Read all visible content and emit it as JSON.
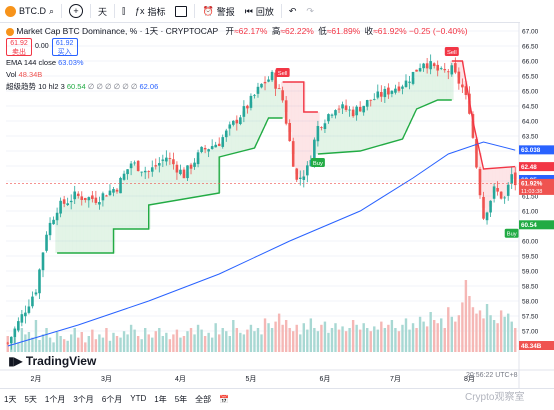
{
  "toolbar": {
    "symbol": "BTC.D",
    "add": "+",
    "interval": "天",
    "indicators": "指标",
    "alert": "警报",
    "replay": "回放",
    "undo": "↶",
    "redo": "↷"
  },
  "legend": {
    "title": "Market Cap BTC Dominance, % · 1天 · CRYPTOCAP",
    "open_label": "开",
    "open": "≈62.17%",
    "high_label": "高",
    "high": "≈62.22%",
    "low_label": "低",
    "low": "≈61.89%",
    "close_label": "收",
    "close": "≈61.92%",
    "change": "−0.25 (−0.40%)",
    "sell_value": "61.92",
    "sell_label": "卖出",
    "mid_value": "0.00",
    "buy_value": "61.92",
    "buy_label": "买入",
    "ema_label": "EMA 144 close",
    "ema_value": "63.03%",
    "vol_label": "Vol",
    "vol_value": "48.34B",
    "trend_label": "超级趋势 10 hl2 3",
    "trend_green": "60.54",
    "trend_empty": "∅ ∅ ∅ ∅ ∅ ∅",
    "trend_blue": "62.06"
  },
  "signals": {
    "sell": "Sell",
    "buy": "Buy"
  },
  "bottombar": {
    "ranges": [
      "1天",
      "5天",
      "1个月",
      "3个月",
      "6个月",
      "YTD",
      "1年",
      "5年",
      "全部"
    ],
    "timestamp": "20:56:22 UTC+8"
  },
  "logo": "TradingView",
  "watermark": "Crypto观察室",
  "colors": {
    "up": "#26a69a",
    "down": "#ef5350",
    "ema": "#2962ff",
    "trend_up": "#22ab44",
    "trend_down": "#f23645"
  },
  "chart_data": {
    "type": "candlestick",
    "title": "Market Cap BTC Dominance, % · 1天 · CRYPTOCAP",
    "y_axis_right": [
      67.0,
      66.5,
      66.0,
      65.5,
      65.0,
      64.5,
      64.0,
      63.5,
      63.0,
      62.5,
      62.0,
      61.5,
      61.0,
      60.5,
      60.0,
      59.5,
      59.0,
      58.5,
      58.0,
      57.5,
      57.0,
      56.5
    ],
    "x_ticks": [
      "2月",
      "3月",
      "4月",
      "5月",
      "6月",
      "7月",
      "8月"
    ],
    "ylim": [
      56.3,
      67.1
    ],
    "price_labels": [
      {
        "value": 63.038,
        "text": "63.038",
        "color": "#2962ff"
      },
      {
        "value": 62.48,
        "text": "62.48",
        "color": "#f23645"
      },
      {
        "value": 62.05,
        "text": "62.05",
        "color": "#2962ff"
      },
      {
        "value": 61.92,
        "text": "61.92%",
        "sub": "11:03:38",
        "color": "#ef5350"
      },
      {
        "value": 60.54,
        "text": "60.54",
        "color": "#22ab44"
      }
    ],
    "vol_label": {
      "text": "48.34B",
      "color": "#ef5350"
    },
    "path_points": [
      [
        0,
        56.6
      ],
      [
        4,
        57.5
      ],
      [
        8,
        58.4
      ],
      [
        11,
        60.3
      ],
      [
        14,
        61.1
      ],
      [
        19,
        61.5
      ],
      [
        25,
        61.4
      ],
      [
        31,
        61.8
      ],
      [
        35,
        62.6
      ],
      [
        40,
        62.3
      ],
      [
        45,
        62.8
      ],
      [
        50,
        62.2
      ],
      [
        55,
        63.0
      ],
      [
        60,
        63.3
      ],
      [
        64,
        63.9
      ],
      [
        68,
        64.5
      ],
      [
        72,
        65.2
      ],
      [
        75,
        65.5
      ],
      [
        78,
        64.7
      ],
      [
        80,
        63.3
      ],
      [
        82,
        62.0
      ],
      [
        85,
        62.4
      ],
      [
        88,
        63.8
      ],
      [
        93,
        64.5
      ],
      [
        98,
        64.3
      ],
      [
        103,
        64.7
      ],
      [
        108,
        65.0
      ],
      [
        113,
        65.3
      ],
      [
        118,
        66.0
      ],
      [
        123,
        65.6
      ],
      [
        126,
        65.7
      ],
      [
        129,
        65.1
      ],
      [
        131,
        64.4
      ],
      [
        133,
        62.5
      ],
      [
        135,
        60.8
      ],
      [
        138,
        61.7
      ],
      [
        141,
        61.4
      ],
      [
        143,
        62.2
      ],
      [
        144,
        61.9
      ]
    ],
    "candle_count": 145,
    "ema": [
      [
        0,
        56.5
      ],
      [
        20,
        57.2
      ],
      [
        40,
        58.0
      ],
      [
        60,
        58.9
      ],
      [
        80,
        60.0
      ],
      [
        100,
        61.0
      ],
      [
        115,
        62.1
      ],
      [
        125,
        62.9
      ],
      [
        135,
        63.3
      ],
      [
        144,
        63.03
      ]
    ],
    "supertrend_up": [
      [
        14,
        59.6
      ],
      [
        30,
        59.6
      ],
      [
        30,
        60.4
      ],
      [
        40,
        60.4
      ],
      [
        40,
        61.2
      ],
      [
        60,
        61.6
      ],
      [
        60,
        62.8
      ],
      [
        70,
        63.1
      ],
      [
        74,
        64.1
      ],
      [
        78,
        64.1
      ]
    ],
    "supertrend_down": [
      [
        78,
        65.3
      ],
      [
        84,
        65.3
      ],
      [
        84,
        64.3
      ],
      [
        88,
        64.3
      ]
    ],
    "supertrend_up2": [
      [
        88,
        62.9
      ],
      [
        100,
        63.0
      ],
      [
        112,
        63.4
      ],
      [
        116,
        64.4
      ],
      [
        122,
        64.7
      ],
      [
        126,
        64.7
      ]
    ],
    "supertrend_down2": [
      [
        126,
        66.0
      ],
      [
        129,
        66.0
      ],
      [
        132,
        64.0
      ],
      [
        135,
        62.4
      ],
      [
        144,
        62.48
      ]
    ],
    "signals": [
      {
        "type": "sell",
        "x": 78,
        "y": 65.3
      },
      {
        "type": "buy",
        "x": 88,
        "y": 62.9
      },
      {
        "type": "sell",
        "x": 126,
        "y": 66.0
      },
      {
        "type": "buy",
        "x": 143,
        "y": 60.54
      }
    ],
    "volume": [
      0.2,
      0.15,
      0.18,
      0.12,
      0.3,
      0.22,
      0.25,
      0.18,
      0.4,
      0.15,
      0.22,
      0.3,
      0.18,
      0.12,
      0.25,
      0.2,
      0.16,
      0.14,
      0.22,
      0.3,
      0.18,
      0.25,
      0.12,
      0.2,
      0.28,
      0.16,
      0.22,
      0.18,
      0.3,
      0.14,
      0.24,
      0.2,
      0.18,
      0.26,
      0.22,
      0.34,
      0.28,
      0.2,
      0.16,
      0.3,
      0.22,
      0.18,
      0.26,
      0.3,
      0.2,
      0.24,
      0.16,
      0.22,
      0.28,
      0.18,
      0.2,
      0.26,
      0.3,
      0.22,
      0.34,
      0.28,
      0.2,
      0.24,
      0.18,
      0.36,
      0.22,
      0.3,
      0.26,
      0.2,
      0.4,
      0.3,
      0.24,
      0.22,
      0.28,
      0.34,
      0.26,
      0.3,
      0.22,
      0.42,
      0.36,
      0.3,
      0.38,
      0.48,
      0.34,
      0.4,
      0.3,
      0.26,
      0.34,
      0.22,
      0.36,
      0.28,
      0.42,
      0.3,
      0.26,
      0.34,
      0.38,
      0.24,
      0.3,
      0.36,
      0.28,
      0.32,
      0.26,
      0.3,
      0.4,
      0.34,
      0.28,
      0.36,
      0.3,
      0.26,
      0.32,
      0.28,
      0.38,
      0.3,
      0.34,
      0.4,
      0.3,
      0.26,
      0.34,
      0.42,
      0.28,
      0.36,
      0.3,
      0.44,
      0.38,
      0.32,
      0.5,
      0.4,
      0.36,
      0.42,
      0.3,
      0.56,
      0.44,
      0.38,
      0.46,
      0.62,
      0.9,
      0.7,
      0.56,
      0.48,
      0.52,
      0.42,
      0.6,
      0.46,
      0.4,
      0.36,
      0.52,
      0.44,
      0.48,
      0.38,
      0.3
    ]
  }
}
